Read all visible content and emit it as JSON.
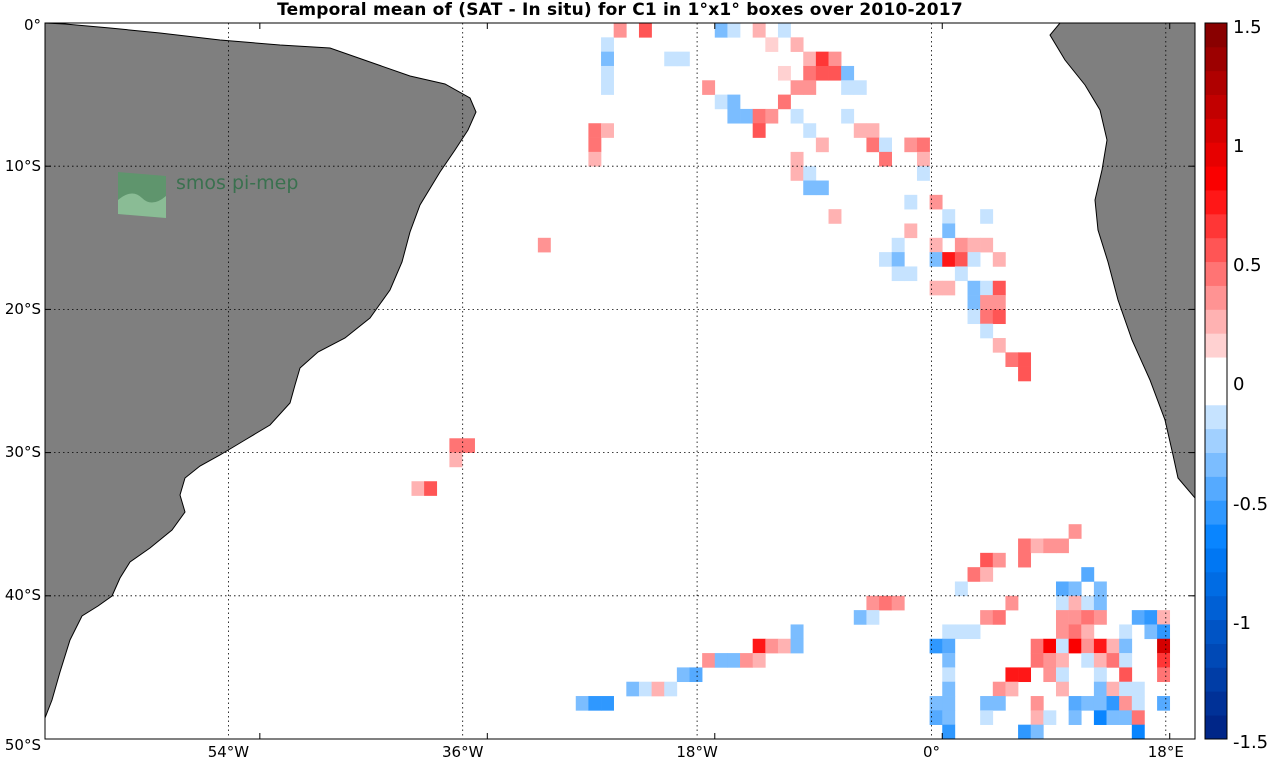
{
  "chart_data": {
    "type": "heatmap",
    "title": "Temporal mean of (SAT - In situ) for C1 in 1°x1° boxes over 2010-2017",
    "xlabel": "",
    "ylabel": "",
    "xlim": [
      -71,
      20
    ],
    "ylim": [
      -50,
      0
    ],
    "x_tick_labels": [
      "54°W",
      "36°W",
      "18°W",
      "0°",
      "18°E"
    ],
    "y_tick_labels": [
      "0°",
      "10°S",
      "20°S",
      "30°S",
      "40°S",
      "50°S"
    ],
    "grid": true,
    "colorbar": {
      "range": [
        -1.5,
        1.5
      ],
      "tick_labels": [
        "1.5",
        "1",
        "0.5",
        "0",
        "-0.5",
        "-1",
        "-1.5"
      ],
      "position": "right"
    },
    "watermark": "smos pi-mep",
    "cells": [
      [
        -25.5,
        -0.5,
        0.3
      ],
      [
        -23.5,
        -0.5,
        0.5
      ],
      [
        -17.5,
        -0.5,
        -0.3
      ],
      [
        -16.5,
        -0.5,
        -0.2
      ],
      [
        -14.5,
        -0.5,
        0.2
      ],
      [
        -12.5,
        -0.5,
        -0.15
      ],
      [
        -26.5,
        -1.5,
        -0.2
      ],
      [
        -13.5,
        -1.5,
        0.15
      ],
      [
        -11.5,
        -1.5,
        0.2
      ],
      [
        -26.5,
        -2.5,
        -0.3
      ],
      [
        -21.5,
        -2.5,
        -0.15
      ],
      [
        -20.5,
        -2.5,
        -0.15
      ],
      [
        -10.5,
        -2.5,
        0.2
      ],
      [
        -9.5,
        -2.5,
        0.6
      ],
      [
        -8.5,
        -2.5,
        0.3
      ],
      [
        -26.5,
        -3.5,
        -0.15
      ],
      [
        -10.5,
        -3.5,
        0.4
      ],
      [
        -9.5,
        -3.5,
        0.5
      ],
      [
        -8.5,
        -3.5,
        0.5
      ],
      [
        -7.5,
        -3.5,
        -0.3
      ],
      [
        -12.5,
        -3.5,
        0.1
      ],
      [
        -26.5,
        -4.5,
        -0.2
      ],
      [
        -18.5,
        -4.5,
        0.3
      ],
      [
        -11.5,
        -4.5,
        0.3
      ],
      [
        -10.5,
        -4.5,
        0.3
      ],
      [
        -7.5,
        -4.5,
        -0.2
      ],
      [
        -6.5,
        -4.5,
        -0.2
      ],
      [
        -17.5,
        -5.5,
        -0.2
      ],
      [
        -16.5,
        -5.5,
        -0.3
      ],
      [
        -12.5,
        -5.5,
        0.4
      ],
      [
        -16.5,
        -6.5,
        -0.3
      ],
      [
        -15.5,
        -6.5,
        -0.3
      ],
      [
        -14.5,
        -6.5,
        0.4
      ],
      [
        -13.5,
        -6.5,
        0.3
      ],
      [
        -11.5,
        -6.5,
        -0.15
      ],
      [
        -7.5,
        -6.5,
        -0.15
      ],
      [
        -27.5,
        -7.5,
        0.4
      ],
      [
        -26.5,
        -7.5,
        0.2
      ],
      [
        -14.5,
        -7.5,
        0.5
      ],
      [
        -10.5,
        -7.5,
        -0.15
      ],
      [
        -6.5,
        -7.5,
        0.2
      ],
      [
        -5.5,
        -7.5,
        0.25
      ],
      [
        -27.5,
        -8.5,
        0.4
      ],
      [
        -9.5,
        -8.5,
        0.2
      ],
      [
        -5.5,
        -8.5,
        0.4
      ],
      [
        -4.5,
        -8.5,
        -0.15
      ],
      [
        -2.5,
        -8.5,
        0.3
      ],
      [
        -1.5,
        -8.5,
        0.45
      ],
      [
        -27.5,
        -9.5,
        0.2
      ],
      [
        -11.5,
        -9.5,
        0.2
      ],
      [
        -4.5,
        -9.5,
        0.4
      ],
      [
        -1.5,
        -9.5,
        0.2
      ],
      [
        -11.5,
        -10.5,
        0.2
      ],
      [
        -10.5,
        -10.5,
        -0.2
      ],
      [
        -1.5,
        -10.5,
        -0.15
      ],
      [
        -10.5,
        -11.5,
        -0.4
      ],
      [
        -9.5,
        -11.5,
        -0.3
      ],
      [
        -2.5,
        -12.5,
        -0.2
      ],
      [
        -0.5,
        -12.5,
        0.3
      ],
      [
        -8.5,
        -13.5,
        0.25
      ],
      [
        0.5,
        -13.5,
        -0.2
      ],
      [
        3.5,
        -13.5,
        -0.15
      ],
      [
        -2.5,
        -14.5,
        0.2
      ],
      [
        0.5,
        -14.5,
        -0.3
      ],
      [
        -31.5,
        -15.5,
        0.3
      ],
      [
        -3.5,
        -15.5,
        -0.2
      ],
      [
        -0.5,
        -15.5,
        0.2
      ],
      [
        1.5,
        -15.5,
        0.3
      ],
      [
        2.5,
        -15.5,
        0.25
      ],
      [
        3.5,
        -15.5,
        0.25
      ],
      [
        -4.5,
        -16.5,
        -0.2
      ],
      [
        -3.5,
        -16.5,
        -0.3
      ],
      [
        -0.5,
        -16.5,
        -0.3
      ],
      [
        0.5,
        -16.5,
        0.7
      ],
      [
        1.5,
        -16.5,
        0.5
      ],
      [
        2.5,
        -16.5,
        -0.2
      ],
      [
        4.5,
        -16.5,
        0.2
      ],
      [
        -3.5,
        -17.5,
        -0.2
      ],
      [
        -2.5,
        -17.5,
        -0.2
      ],
      [
        1.5,
        -17.5,
        -0.2
      ],
      [
        -0.5,
        -18.5,
        0.2
      ],
      [
        0.5,
        -18.5,
        0.2
      ],
      [
        2.5,
        -18.5,
        -0.3
      ],
      [
        3.5,
        -18.5,
        -0.15
      ],
      [
        4.5,
        -18.5,
        0.5
      ],
      [
        2.5,
        -19.5,
        -0.4
      ],
      [
        3.5,
        -19.5,
        0.3
      ],
      [
        4.5,
        -19.5,
        0.3
      ],
      [
        2.5,
        -20.5,
        -0.2
      ],
      [
        3.5,
        -20.5,
        0.4
      ],
      [
        4.5,
        -20.5,
        0.5
      ],
      [
        3.5,
        -21.5,
        -0.15
      ],
      [
        4.5,
        -22.5,
        0.25
      ],
      [
        5.5,
        -23.5,
        0.4
      ],
      [
        6.5,
        -23.5,
        0.5
      ],
      [
        6.5,
        -24.5,
        0.5
      ],
      [
        -38.5,
        -29.5,
        0.4
      ],
      [
        -37.5,
        -29.5,
        0.4
      ],
      [
        -38.5,
        -30.5,
        0.2
      ],
      [
        -41.5,
        -32.5,
        0.2
      ],
      [
        -40.5,
        -32.5,
        0.5
      ],
      [
        10.5,
        -35.5,
        0.3
      ],
      [
        6.5,
        -36.5,
        0.4
      ],
      [
        7.5,
        -36.5,
        0.2
      ],
      [
        8.5,
        -36.5,
        0.3
      ],
      [
        9.5,
        -36.5,
        0.3
      ],
      [
        3.5,
        -37.5,
        0.5
      ],
      [
        4.5,
        -37.5,
        0.3
      ],
      [
        6.5,
        -37.5,
        0.4
      ],
      [
        2.5,
        -38.5,
        0.4
      ],
      [
        3.5,
        -38.5,
        0.2
      ],
      [
        11.5,
        -38.5,
        -0.5
      ],
      [
        1.5,
        -39.5,
        -0.15
      ],
      [
        9.5,
        -39.5,
        -0.5
      ],
      [
        10.5,
        -39.5,
        -0.3
      ],
      [
        12.5,
        -39.5,
        -0.3
      ],
      [
        -5.5,
        -40.5,
        0.3
      ],
      [
        -4.5,
        -40.5,
        0.4
      ],
      [
        -3.5,
        -40.5,
        0.3
      ],
      [
        5.5,
        -40.5,
        0.3
      ],
      [
        9.5,
        -40.5,
        -0.2
      ],
      [
        10.5,
        -40.5,
        0.2
      ],
      [
        11.5,
        -40.5,
        -0.2
      ],
      [
        12.5,
        -40.5,
        -0.4
      ],
      [
        -6.5,
        -41.5,
        -0.3
      ],
      [
        -5.5,
        -41.5,
        -0.2
      ],
      [
        3.5,
        -41.5,
        0.3
      ],
      [
        4.5,
        -41.5,
        0.4
      ],
      [
        9.5,
        -41.5,
        0.3
      ],
      [
        10.5,
        -41.5,
        0.3
      ],
      [
        11.5,
        -41.5,
        0.4
      ],
      [
        12.5,
        -41.5,
        0.3
      ],
      [
        15.5,
        -41.5,
        -0.5
      ],
      [
        16.5,
        -41.5,
        -0.6
      ],
      [
        17.5,
        -41.5,
        0.2
      ],
      [
        -11.5,
        -42.5,
        -0.4
      ],
      [
        0.5,
        -42.5,
        -0.15
      ],
      [
        1.5,
        -42.5,
        -0.15
      ],
      [
        2.5,
        -42.5,
        -0.15
      ],
      [
        9.5,
        -42.5,
        0.3
      ],
      [
        10.5,
        -42.5,
        0.4
      ],
      [
        11.5,
        -42.5,
        0.2
      ],
      [
        14.5,
        -42.5,
        -0.2
      ],
      [
        16.5,
        -42.5,
        -0.3
      ],
      [
        17.5,
        -42.5,
        -0.6
      ],
      [
        -14.5,
        -43.5,
        0.7
      ],
      [
        -13.5,
        -43.5,
        0.3
      ],
      [
        -12.5,
        -43.5,
        0.2
      ],
      [
        -11.5,
        -43.5,
        -0.4
      ],
      [
        -0.5,
        -43.5,
        -0.6
      ],
      [
        0.5,
        -43.5,
        -0.5
      ],
      [
        7.5,
        -43.5,
        0.4
      ],
      [
        8.5,
        -43.5,
        0.8
      ],
      [
        9.5,
        -43.5,
        -0.2
      ],
      [
        10.5,
        -43.5,
        0.9
      ],
      [
        11.5,
        -43.5,
        0.3
      ],
      [
        12.5,
        -43.5,
        0.7
      ],
      [
        13.5,
        -43.5,
        0.2
      ],
      [
        14.5,
        -43.5,
        -0.3
      ],
      [
        17.5,
        -43.5,
        1.0
      ],
      [
        -18.5,
        -44.5,
        0.3
      ],
      [
        -17.5,
        -44.5,
        -0.3
      ],
      [
        -16.5,
        -44.5,
        -0.3
      ],
      [
        -15.5,
        -44.5,
        0.3
      ],
      [
        -14.5,
        -44.5,
        0.2
      ],
      [
        0.5,
        -44.5,
        -0.4
      ],
      [
        7.5,
        -44.5,
        0.4
      ],
      [
        8.5,
        -44.5,
        0.3
      ],
      [
        9.5,
        -44.5,
        0.2
      ],
      [
        11.5,
        -44.5,
        -0.2
      ],
      [
        12.5,
        -44.5,
        0.2
      ],
      [
        13.5,
        -44.5,
        0.4
      ],
      [
        14.5,
        -44.5,
        -0.2
      ],
      [
        17.5,
        -44.5,
        0.6
      ],
      [
        -20.5,
        -45.5,
        -0.4
      ],
      [
        -19.5,
        -45.5,
        -0.5
      ],
      [
        0.5,
        -45.5,
        -0.2
      ],
      [
        5.5,
        -45.5,
        0.7
      ],
      [
        6.5,
        -45.5,
        0.7
      ],
      [
        8.5,
        -45.5,
        0.3
      ],
      [
        9.5,
        -45.5,
        -0.2
      ],
      [
        12.5,
        -45.5,
        -0.2
      ],
      [
        14.5,
        -45.5,
        0.5
      ],
      [
        17.5,
        -45.5,
        0.4
      ],
      [
        -24.5,
        -46.5,
        -0.3
      ],
      [
        -23.5,
        -46.5,
        -0.15
      ],
      [
        -22.5,
        -46.5,
        0.2
      ],
      [
        -21.5,
        -46.5,
        -0.15
      ],
      [
        0.5,
        -46.5,
        -0.3
      ],
      [
        4.5,
        -46.5,
        0.3
      ],
      [
        5.5,
        -46.5,
        0.2
      ],
      [
        9.5,
        -46.5,
        0.2
      ],
      [
        12.5,
        -46.5,
        -0.3
      ],
      [
        13.5,
        -46.5,
        0.2
      ],
      [
        14.5,
        -46.5,
        -0.2
      ],
      [
        15.5,
        -46.5,
        -0.2
      ],
      [
        -28.5,
        -47.5,
        -0.3
      ],
      [
        -27.5,
        -47.5,
        -0.6
      ],
      [
        -26.5,
        -47.5,
        -0.6
      ],
      [
        -0.5,
        -47.5,
        -0.3
      ],
      [
        0.5,
        -47.5,
        -0.3
      ],
      [
        3.5,
        -47.5,
        -0.4
      ],
      [
        4.5,
        -47.5,
        -0.4
      ],
      [
        7.5,
        -47.5,
        0.3
      ],
      [
        10.5,
        -47.5,
        -0.5
      ],
      [
        11.5,
        -47.5,
        -0.3
      ],
      [
        12.5,
        -47.5,
        -0.3
      ],
      [
        13.5,
        -47.5,
        -0.6
      ],
      [
        14.5,
        -47.5,
        0.3
      ],
      [
        15.5,
        -47.5,
        -0.2
      ],
      [
        17.5,
        -47.5,
        -0.5
      ],
      [
        -0.5,
        -48.5,
        -0.5
      ],
      [
        0.5,
        -48.5,
        -0.3
      ],
      [
        3.5,
        -48.5,
        -0.15
      ],
      [
        7.5,
        -48.5,
        0.2
      ],
      [
        8.5,
        -48.5,
        -0.2
      ],
      [
        10.5,
        -48.5,
        -0.3
      ],
      [
        12.5,
        -48.5,
        -0.7
      ],
      [
        13.5,
        -48.5,
        -0.4
      ],
      [
        14.5,
        -48.5,
        -0.3
      ],
      [
        15.5,
        -48.5,
        0.4
      ],
      [
        0.5,
        -49.5,
        -0.6
      ],
      [
        6.5,
        -49.5,
        -0.6
      ],
      [
        7.5,
        -49.5,
        -0.4
      ],
      [
        15.5,
        -49.5,
        -0.7
      ]
    ]
  }
}
